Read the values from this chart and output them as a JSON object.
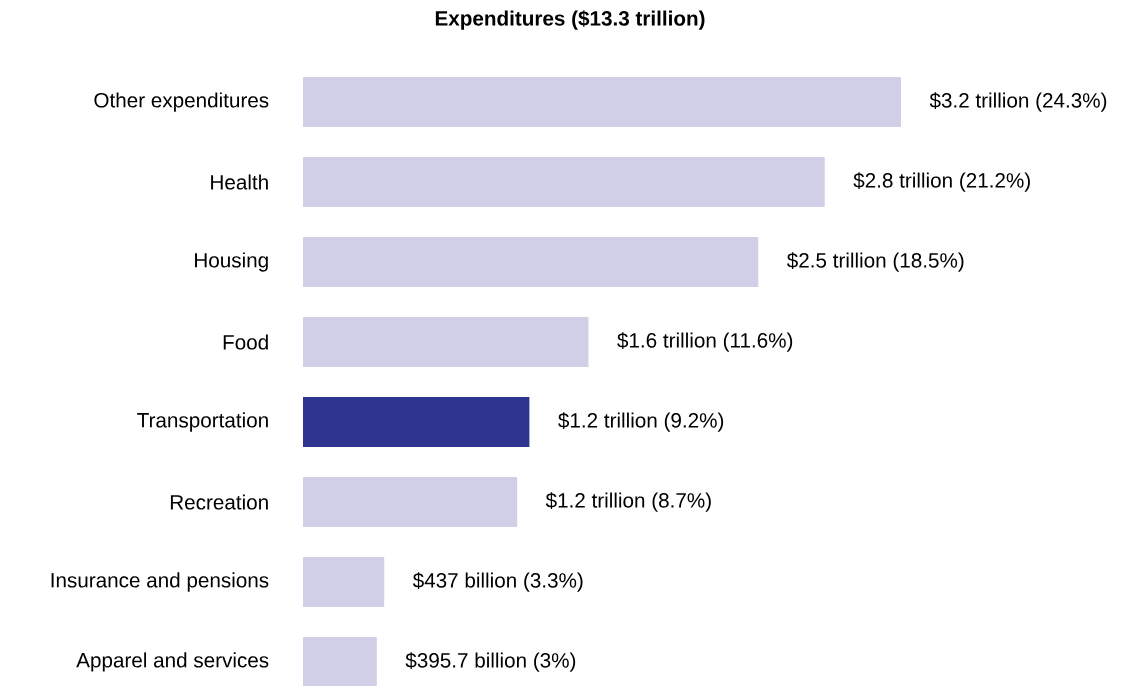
{
  "chart_data": {
    "type": "bar",
    "orientation": "horizontal",
    "title": "Expenditures ($13.3 trillion)",
    "categories": [
      "Other expenditures",
      "Health",
      "Housing",
      "Food",
      "Transportation",
      "Recreation",
      "Insurance and pensions",
      "Apparel and services"
    ],
    "values": [
      24.3,
      21.2,
      18.5,
      11.6,
      9.2,
      8.7,
      3.3,
      3.0
    ],
    "value_labels": [
      "$3.2 trillion (24.3%)",
      "$2.8 trillion (21.2%)",
      "$2.5 trillion (18.5%)",
      "$1.6 trillion (11.6%)",
      "$1.2 trillion (9.2%)",
      "$1.2 trillion (8.7%)",
      "$437 billion (3.3%)",
      "$395.7 billion (3%)"
    ],
    "colors": [
      "#d0cfe7",
      "#d0cfe7",
      "#d0cfe7",
      "#d0cfe7",
      "#2e3590",
      "#d0cfe7",
      "#d0cfe7",
      "#d0cfe7"
    ]
  }
}
